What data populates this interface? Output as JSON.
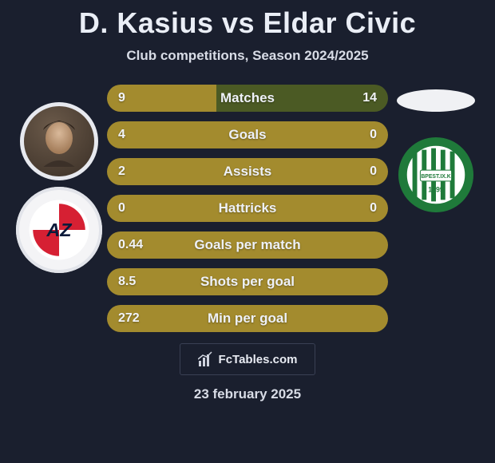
{
  "title": "D. Kasius vs Eldar Civic",
  "subtitle": "Club competitions, Season 2024/2025",
  "colors": {
    "bar_left": "#a38b2e",
    "bar_right": "#4b5a24",
    "bar_full": "#a38b2e",
    "background": "#1a1f2e",
    "text": "#eaeef6"
  },
  "player_left": {
    "name": "D. Kasius",
    "club_badge_text": "AZ",
    "club_colors": {
      "primary": "#d62033",
      "secondary": "#ffffff",
      "text": "#0b1a3a"
    }
  },
  "player_right": {
    "name": "Eldar Civic",
    "club_badge_outer": "#1f7a3a",
    "club_badge_inner": "#ffffff",
    "club_badge_text": "BPEST.IX.K",
    "club_badge_year": "1899"
  },
  "rows": [
    {
      "label": "Matches",
      "left": "9",
      "right": "14",
      "left_pct": 39
    },
    {
      "label": "Goals",
      "left": "4",
      "right": "0",
      "left_pct": 100
    },
    {
      "label": "Assists",
      "left": "2",
      "right": "0",
      "left_pct": 100
    },
    {
      "label": "Hattricks",
      "left": "0",
      "right": "0",
      "left_pct": 100
    },
    {
      "label": "Goals per match",
      "left": "0.44",
      "right": "",
      "left_pct": 100
    },
    {
      "label": "Shots per goal",
      "left": "8.5",
      "right": "",
      "left_pct": 100
    },
    {
      "label": "Min per goal",
      "left": "272",
      "right": "",
      "left_pct": 100
    }
  ],
  "footer_logo": "FcTables.com",
  "date": "23 february 2025"
}
